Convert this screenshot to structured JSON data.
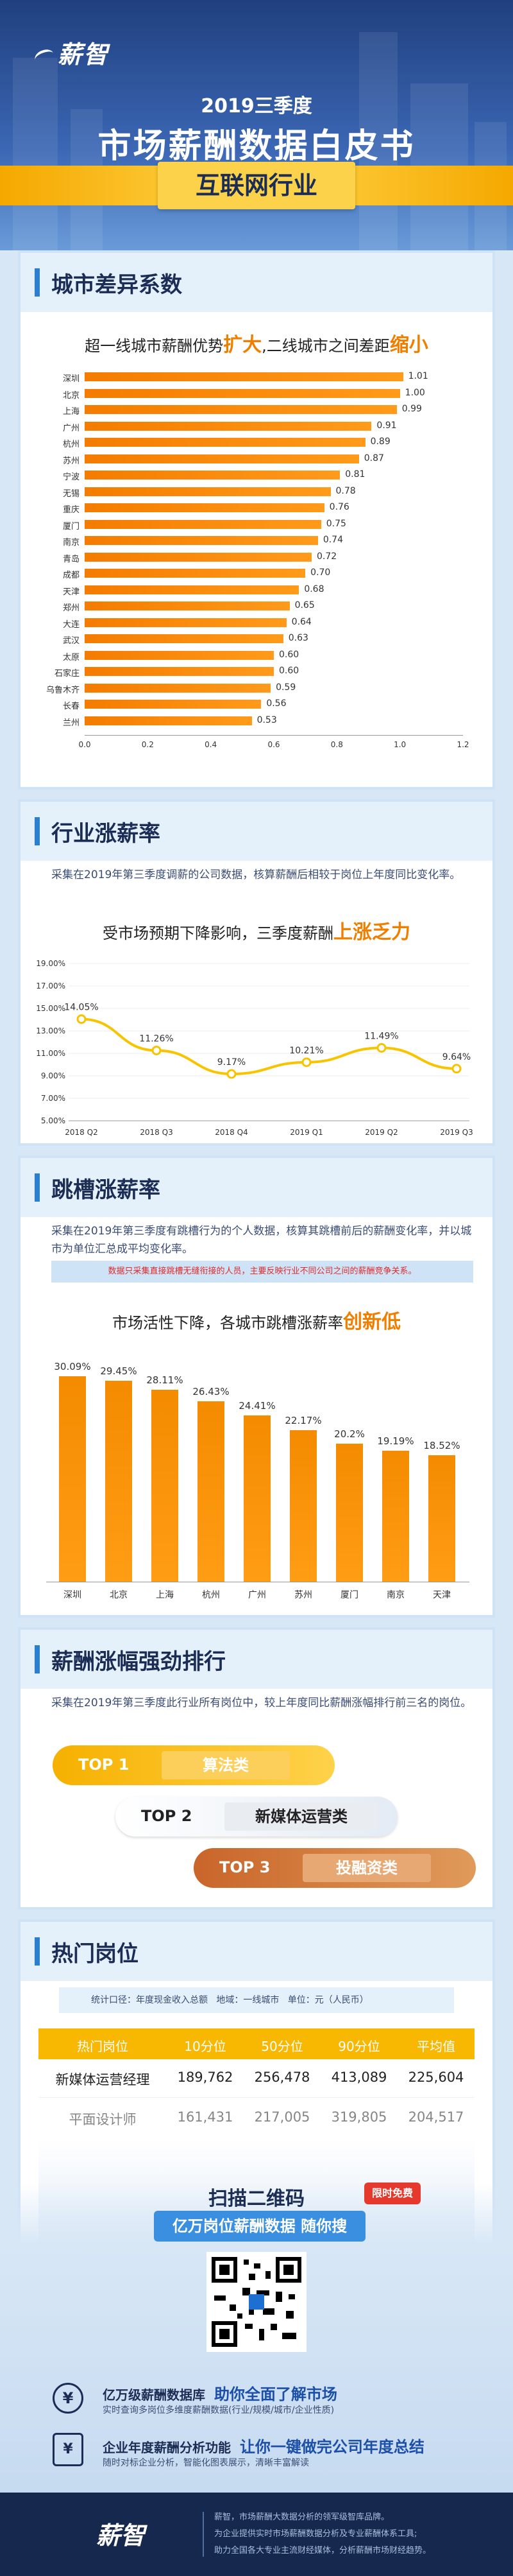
{
  "header": {
    "logo": "薪智",
    "year": "2019三季度",
    "title": "市场薪酬数据白皮书",
    "industry": "互联网行业"
  },
  "city": {
    "title": "城市差异系数",
    "sub_pre": "超一线城市薪酬优势",
    "sub_hl1": "扩大",
    "sub_mid": ",二线城市之间差距",
    "sub_hl2": "缩小",
    "chart_data": {
      "type": "bar",
      "orientation": "horizontal",
      "categories": [
        "深圳",
        "北京",
        "上海",
        "广州",
        "杭州",
        "苏州",
        "宁波",
        "无锡",
        "重庆",
        "厦门",
        "南京",
        "青岛",
        "成都",
        "天津",
        "郑州",
        "大连",
        "武汉",
        "太原",
        "石家庄",
        "乌鲁木齐",
        "长春",
        "兰州"
      ],
      "values": [
        1.01,
        1.0,
        0.99,
        0.91,
        0.89,
        0.87,
        0.81,
        0.78,
        0.76,
        0.75,
        0.74,
        0.72,
        0.7,
        0.68,
        0.65,
        0.64,
        0.63,
        0.6,
        0.6,
        0.59,
        0.56,
        0.53
      ],
      "value_labels": [
        "1.01",
        "1.00",
        "0.99",
        "0.91",
        "0.89",
        "0.87",
        "0.81",
        "0.78",
        "0.76",
        "0.75",
        "0.74",
        "0.72",
        "0.70",
        "0.68",
        "0.65",
        "0.64",
        "0.63",
        "0.60",
        "0.60",
        "0.59",
        "0.56",
        "0.53"
      ],
      "xlim": [
        0,
        1.2
      ],
      "xticks": [
        "0.0",
        "0.2",
        "0.4",
        "0.6",
        "0.8",
        "1.0",
        "1.2"
      ]
    }
  },
  "industry": {
    "title": "行业涨薪率",
    "desc": "采集在2019年第三季度调薪的公司数据，核算薪酬后相较于岗位上年度同比变化率。",
    "sub_pre": "受市场预期下降影响，三季度薪酬",
    "sub_hl": "上涨乏力",
    "chart_data": {
      "type": "line",
      "x": [
        "2018 Q2",
        "2018 Q3",
        "2018 Q4",
        "2019 Q1",
        "2019 Q2",
        "2019 Q3"
      ],
      "values": [
        14.05,
        11.26,
        9.17,
        10.21,
        11.49,
        9.64
      ],
      "value_labels": [
        "14.05%",
        "11.26%",
        "9.17%",
        "10.21%",
        "11.49%",
        "9.64%"
      ],
      "ylim": [
        5,
        19
      ],
      "yticks": [
        "19.00%",
        "17.00%",
        "15.00%",
        "13.00%",
        "11.00%",
        "9.00%",
        "7.00%",
        "5.00%"
      ]
    }
  },
  "jump": {
    "title": "跳槽涨薪率",
    "desc": "采集在2019年第三季度有跳槽行为的个人数据，核算其跳槽前后的薪酬变化率，并以城市为单位汇总成平均变化率。",
    "note": "数据只采集直接跳槽无缝衔接的人员，主要反映行业不同公司之间的薪酬竞争关系。",
    "sub_pre": "市场活性下降，各城市跳槽涨薪率",
    "sub_hl": "创新低",
    "chart_data": {
      "type": "bar",
      "categories": [
        "深圳",
        "北京",
        "上海",
        "杭州",
        "广州",
        "苏州",
        "厦门",
        "南京",
        "天津"
      ],
      "values": [
        30.09,
        29.45,
        28.11,
        26.43,
        24.41,
        22.17,
        20.2,
        19.19,
        18.52
      ],
      "value_labels": [
        "30.09%",
        "29.45%",
        "28.11%",
        "26.43%",
        "24.41%",
        "22.17%",
        "20.2%",
        "19.19%",
        "18.52%"
      ],
      "ylim": [
        0,
        32
      ]
    }
  },
  "ranking": {
    "title": "薪酬涨幅强劲排行",
    "desc": "采集在2019年第三季度此行业所有岗位中，较上年度同比薪酬涨幅排行前三名的岗位。",
    "items": [
      {
        "rank": "TOP 1",
        "name": "算法类"
      },
      {
        "rank": "TOP 2",
        "name": "新媒体运营类"
      },
      {
        "rank": "TOP 3",
        "name": "投融资类"
      }
    ]
  },
  "hot": {
    "title": "热门岗位",
    "meta_scope": "统计口径：年度现金收入总额",
    "meta_region": "地域：一线城市",
    "meta_unit": "单位：元（人民币）",
    "columns": [
      "热门岗位",
      "10分位",
      "50分位",
      "90分位",
      "平均值"
    ],
    "rows": [
      [
        "新媒体运营经理",
        "189,762",
        "256,478",
        "413,089",
        "225,604"
      ],
      [
        "平面设计师",
        "161,431",
        "217,005",
        "319,805",
        "204,517"
      ]
    ]
  },
  "cta": {
    "scan": "扫描二维码",
    "badge": "限时免费",
    "slogan": "亿万岗位薪酬数据 随你搜",
    "f1_title": "亿万级薪酬数据库",
    "f1_hl": "助你全面了解市场",
    "f1_desc": "实时查询多岗位多维度薪酬数据(行业/规模/城市/企业性质)",
    "f2_title": "企业年度薪酬分析功能",
    "f2_hl": "让你一键做完公司年度总结",
    "f2_desc": "随时对标企业分析，智能化图表展示，清晰丰富解读"
  },
  "footer": {
    "logo": "薪智",
    "line1": "薪智，市场薪酬大数据分析的领军级智库品牌。",
    "line2": "为企业提供实时市场薪酬数据分析及专业薪酬体系工具;",
    "line3": "助力全国各大专业主流财经媒体，分析薪酬市场财经趋势。"
  }
}
